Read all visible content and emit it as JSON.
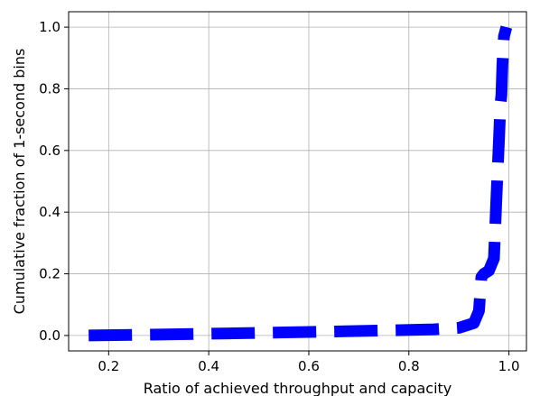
{
  "chart_data": {
    "type": "line",
    "title": "",
    "xlabel": "Ratio of achieved throughput and capacity",
    "ylabel": "Cumulative fraction of 1-second bins",
    "xlim": [
      0.12,
      1.035
    ],
    "ylim": [
      -0.05,
      1.05
    ],
    "xticks": [
      "0.2",
      "0.4",
      "0.6",
      "0.8",
      "1.0"
    ],
    "yticks": [
      "0.0",
      "0.2",
      "0.4",
      "0.6",
      "0.8",
      "1.0"
    ],
    "grid": true,
    "series": [
      {
        "line_style": "dashed",
        "color": "#0000ff",
        "x": [
          0.16,
          0.3,
          0.45,
          0.55,
          0.65,
          0.75,
          0.85,
          0.9,
          0.93,
          0.94,
          0.945,
          0.95,
          0.96,
          0.97,
          0.975,
          0.98,
          0.983,
          0.985,
          0.987,
          0.99,
          0.995
        ],
        "y": [
          0.0,
          0.003,
          0.007,
          0.01,
          0.013,
          0.016,
          0.02,
          0.025,
          0.04,
          0.08,
          0.19,
          0.2,
          0.21,
          0.25,
          0.45,
          0.63,
          0.75,
          0.78,
          0.88,
          0.97,
          1.0
        ]
      }
    ]
  }
}
